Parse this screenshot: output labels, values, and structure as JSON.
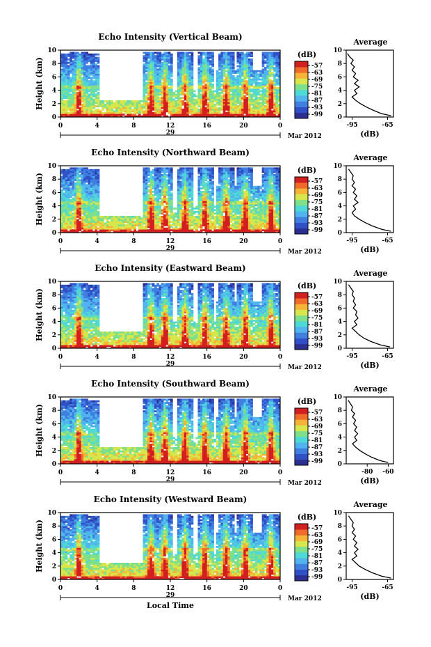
{
  "chart_data": [
    {
      "type": "heatmap",
      "title": "Echo Intensity (Vertical Beam)",
      "ylabel": "Height (km)",
      "xlabel": "",
      "x_ticks": [
        "0",
        "4",
        "8",
        "12",
        "16",
        "20",
        "0"
      ],
      "y_ticks": [
        "0",
        "2",
        "4",
        "6",
        "8",
        "10"
      ],
      "xlim": [
        0,
        24
      ],
      "ylim": [
        0,
        10
      ],
      "day_label": "29",
      "date_label": "Mar 2012",
      "colorbar": {
        "label": "(dB)",
        "ticks": [
          "-57",
          "-63",
          "-69",
          "-75",
          "-81",
          "-87",
          "-93",
          "-99"
        ]
      },
      "profile": {
        "title": "Average",
        "xlabel": "(dB)",
        "x_ticks": [
          "-95",
          "-65"
        ],
        "y_ticks": [
          "0",
          "2",
          "4",
          "6",
          "8",
          "10"
        ],
        "xlim": [
          -100,
          -60
        ],
        "heights": [
          0.2,
          0.5,
          1.0,
          1.5,
          2.0,
          2.5,
          3.0,
          3.5,
          4.0,
          4.5,
          5.0,
          5.5,
          6.0,
          6.5,
          7.0,
          7.5,
          8.0,
          8.5,
          9.0,
          9.5
        ],
        "values": [
          -62,
          -70,
          -77,
          -83,
          -88,
          -92,
          -95,
          -91,
          -93,
          -89,
          -93,
          -90,
          -94,
          -92,
          -95,
          -93,
          -96,
          -94,
          -97,
          -99
        ]
      }
    },
    {
      "type": "heatmap",
      "title": "Echo Intensity (Northward Beam)",
      "ylabel": "Height (km)",
      "xlabel": "",
      "x_ticks": [
        "0",
        "4",
        "8",
        "12",
        "16",
        "20",
        "0"
      ],
      "y_ticks": [
        "0",
        "2",
        "4",
        "6",
        "8",
        "10"
      ],
      "xlim": [
        0,
        24
      ],
      "ylim": [
        0,
        10
      ],
      "day_label": "29",
      "date_label": "Mar 2012",
      "colorbar": {
        "label": "(dB)",
        "ticks": [
          "-57",
          "-63",
          "-69",
          "-75",
          "-81",
          "-87",
          "-93",
          "-99"
        ]
      },
      "profile": {
        "title": "Average",
        "xlabel": "(dB)",
        "x_ticks": [
          "-95",
          "-65"
        ],
        "y_ticks": [
          "0",
          "2",
          "4",
          "6",
          "8",
          "10"
        ],
        "xlim": [
          -100,
          -60
        ],
        "heights": [
          0.2,
          0.5,
          1.0,
          1.5,
          2.0,
          2.5,
          3.0,
          3.5,
          4.0,
          4.5,
          5.0,
          5.5,
          6.0,
          6.5,
          7.0,
          7.5,
          8.0,
          8.5,
          9.0,
          9.5
        ],
        "values": [
          -62,
          -70,
          -78,
          -84,
          -89,
          -93,
          -95,
          -92,
          -94,
          -90,
          -93,
          -91,
          -94,
          -92,
          -95,
          -93,
          -95,
          -94,
          -96,
          -98
        ]
      }
    },
    {
      "type": "heatmap",
      "title": "Echo Intensity (Eastward Beam)",
      "ylabel": "Height (km)",
      "xlabel": "",
      "x_ticks": [
        "0",
        "4",
        "8",
        "12",
        "16",
        "20",
        "0"
      ],
      "y_ticks": [
        "0",
        "2",
        "4",
        "6",
        "8",
        "10"
      ],
      "xlim": [
        0,
        24
      ],
      "ylim": [
        0,
        10
      ],
      "day_label": "29",
      "date_label": "Mar 2012",
      "colorbar": {
        "label": "(dB)",
        "ticks": [
          "-57",
          "-63",
          "-69",
          "-75",
          "-81",
          "-87",
          "-93",
          "-99"
        ]
      },
      "profile": {
        "title": "Average",
        "xlabel": "(dB)",
        "x_ticks": [
          "-95",
          "-65"
        ],
        "y_ticks": [
          "0",
          "2",
          "4",
          "6",
          "8",
          "10"
        ],
        "xlim": [
          -100,
          -60
        ],
        "heights": [
          0.2,
          0.5,
          1.0,
          1.5,
          2.0,
          2.5,
          3.0,
          3.5,
          4.0,
          4.5,
          5.0,
          5.5,
          6.0,
          6.5,
          7.0,
          7.5,
          8.0,
          8.5,
          9.0,
          9.5
        ],
        "values": [
          -63,
          -71,
          -79,
          -85,
          -89,
          -92,
          -95,
          -91,
          -93,
          -90,
          -92,
          -91,
          -94,
          -92,
          -94,
          -93,
          -95,
          -94,
          -96,
          -98
        ]
      }
    },
    {
      "type": "heatmap",
      "title": "Echo Intensity (Southward Beam)",
      "ylabel": "Height (km)",
      "xlabel": "",
      "x_ticks": [
        "0",
        "4",
        "8",
        "12",
        "16",
        "20",
        "0"
      ],
      "y_ticks": [
        "0",
        "2",
        "4",
        "6",
        "8",
        "10"
      ],
      "xlim": [
        0,
        24
      ],
      "ylim": [
        0,
        10
      ],
      "day_label": "29",
      "date_label": "Mar 2012",
      "colorbar": {
        "label": "(dB)",
        "ticks": [
          "-57",
          "-63",
          "-69",
          "-75",
          "-81",
          "-87",
          "-93",
          "-99"
        ]
      },
      "profile": {
        "title": "Average",
        "xlabel": "(dB)",
        "x_ticks": [
          "-80",
          "-60"
        ],
        "y_ticks": [
          "0",
          "2",
          "4",
          "6",
          "8",
          "10"
        ],
        "xlim": [
          -100,
          -55
        ],
        "heights": [
          0.2,
          0.5,
          1.0,
          1.5,
          2.0,
          2.5,
          3.0,
          3.5,
          4.0,
          4.5,
          5.0,
          5.5,
          6.0,
          6.5,
          7.0,
          7.5,
          8.0,
          8.5,
          9.0,
          9.5
        ],
        "values": [
          -60,
          -68,
          -76,
          -82,
          -87,
          -91,
          -94,
          -90,
          -92,
          -89,
          -92,
          -90,
          -93,
          -91,
          -94,
          -92,
          -95,
          -94,
          -96,
          -98
        ]
      }
    },
    {
      "type": "heatmap",
      "title": "Echo Intensity (Westward Beam)",
      "ylabel": "Height (km)",
      "xlabel": "Local Time",
      "x_ticks": [
        "0",
        "4",
        "8",
        "12",
        "16",
        "20",
        "0"
      ],
      "y_ticks": [
        "0",
        "2",
        "4",
        "6",
        "8",
        "10"
      ],
      "xlim": [
        0,
        24
      ],
      "ylim": [
        0,
        10
      ],
      "day_label": "29",
      "date_label": "Mar 2012",
      "colorbar": {
        "label": "(dB)",
        "ticks": [
          "-57",
          "-63",
          "-69",
          "-75",
          "-81",
          "-87",
          "-93",
          "-99"
        ]
      },
      "profile": {
        "title": "Average",
        "xlabel": "(dB)",
        "x_ticks": [
          "-95",
          "-65"
        ],
        "y_ticks": [
          "0",
          "2",
          "4",
          "6",
          "8",
          "10"
        ],
        "xlim": [
          -100,
          -60
        ],
        "heights": [
          0.2,
          0.5,
          1.0,
          1.5,
          2.0,
          2.5,
          3.0,
          3.5,
          4.0,
          4.5,
          5.0,
          5.5,
          6.0,
          6.5,
          7.0,
          7.5,
          8.0,
          8.5,
          9.0,
          9.5
        ],
        "values": [
          -62,
          -70,
          -78,
          -84,
          -89,
          -92,
          -95,
          -91,
          -93,
          -90,
          -93,
          -91,
          -94,
          -92,
          -95,
          -93,
          -95,
          -94,
          -96,
          -98
        ]
      }
    }
  ],
  "colors": {
    "colormap": [
      "#2b2f8f",
      "#3050c8",
      "#3f7fe0",
      "#52b4ef",
      "#4fd9d6",
      "#7ee08a",
      "#d7e64a",
      "#f6b335",
      "#f06a2a",
      "#d21f1f"
    ],
    "axis": "#000000"
  }
}
